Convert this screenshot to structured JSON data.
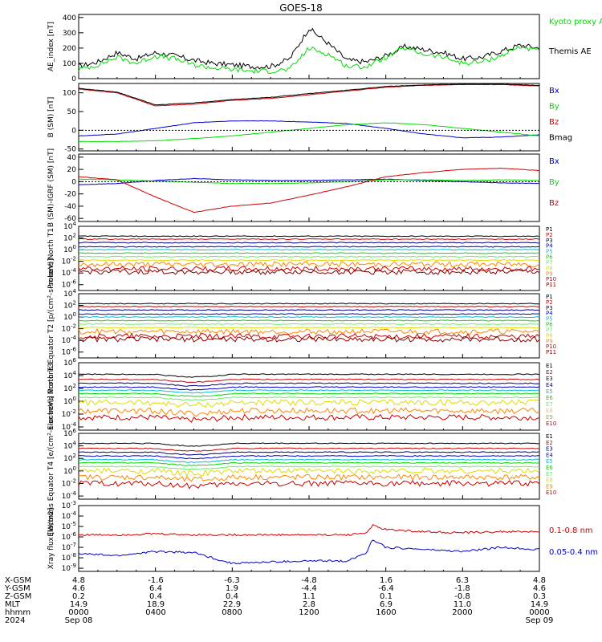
{
  "title": "GOES-18",
  "colors": {
    "black": "#000000",
    "red": "#cc0000",
    "green": "#00dd00",
    "blue": "#0000cc",
    "navy": "#000080",
    "cyan": "#00bbdd",
    "magenta": "#cc00cc",
    "yellow": "#dddd00",
    "orange": "#ff8800",
    "lightgreen": "#66ee66",
    "brown": "#880000"
  },
  "chart_data": [
    {
      "type": "line",
      "title": "GOES-18",
      "ylabel": "AE_index [nT]",
      "yticks": [
        "400",
        "300",
        "200",
        "100",
        "0"
      ],
      "ylim": [
        0,
        420
      ],
      "legend": [
        "Kyoto proxy AE",
        "Themis AE"
      ],
      "series": [
        {
          "name": "Themis AE",
          "color": "#000000",
          "x": [
            0,
            1,
            2,
            3,
            4,
            5,
            6,
            7,
            8,
            9,
            10,
            11,
            12,
            13,
            14,
            15,
            16,
            17,
            18,
            19,
            20,
            21,
            22,
            23,
            24
          ],
          "values": [
            80,
            110,
            170,
            130,
            170,
            150,
            120,
            100,
            90,
            80,
            80,
            130,
            330,
            230,
            120,
            110,
            150,
            210,
            190,
            170,
            130,
            140,
            180,
            220,
            200
          ]
        },
        {
          "name": "Kyoto proxy AE",
          "color": "#00dd00",
          "x": [
            0,
            1,
            2,
            3,
            4,
            5,
            6,
            7,
            8,
            9,
            10,
            11,
            12,
            13,
            14,
            15,
            16,
            17,
            18,
            19,
            20,
            21,
            22,
            23,
            24
          ],
          "values": [
            60,
            90,
            140,
            100,
            150,
            130,
            90,
            70,
            60,
            50,
            50,
            60,
            200,
            160,
            80,
            80,
            140,
            200,
            160,
            140,
            100,
            110,
            150,
            210,
            180
          ]
        }
      ]
    },
    {
      "type": "line",
      "ylabel": "B (SM) [nT]",
      "yticks": [
        "100",
        "50",
        "0",
        "-50"
      ],
      "ylim": [
        -55,
        125
      ],
      "legend": [
        "Bx",
        "By",
        "Bz",
        "Bmag"
      ],
      "series": [
        {
          "name": "Bx",
          "color": "#0000cc",
          "x": [
            0,
            2,
            4,
            6,
            8,
            10,
            12,
            14,
            16,
            18,
            20,
            22,
            24
          ],
          "values": [
            -15,
            -10,
            5,
            20,
            25,
            25,
            22,
            18,
            5,
            -10,
            -20,
            -18,
            -12
          ]
        },
        {
          "name": "By",
          "color": "#00dd00",
          "x": [
            0,
            2,
            4,
            6,
            8,
            10,
            12,
            14,
            16,
            18,
            20,
            22,
            24
          ],
          "values": [
            -30,
            -30,
            -28,
            -22,
            -15,
            -5,
            5,
            15,
            20,
            15,
            5,
            -5,
            -15
          ]
        },
        {
          "name": "Bz",
          "color": "#cc0000",
          "x": [
            0,
            2,
            4,
            6,
            8,
            10,
            12,
            14,
            16,
            18,
            20,
            22,
            24
          ],
          "values": [
            110,
            100,
            65,
            70,
            80,
            85,
            95,
            105,
            115,
            120,
            122,
            122,
            118
          ]
        },
        {
          "name": "Bmag",
          "color": "#000000",
          "x": [
            0,
            2,
            4,
            6,
            8,
            10,
            12,
            14,
            16,
            18,
            20,
            22,
            24
          ],
          "values": [
            112,
            102,
            68,
            73,
            82,
            88,
            98,
            107,
            117,
            121,
            123,
            123,
            120
          ]
        }
      ]
    },
    {
      "type": "line",
      "ylabel": "B (SM)-IGRF (SM) [nT]",
      "yticks": [
        "40",
        "20",
        "0",
        "-20",
        "-40",
        "-60"
      ],
      "ylim": [
        -65,
        45
      ],
      "legend": [
        "Bx",
        "By",
        "Bz"
      ],
      "series": [
        {
          "name": "Bx",
          "color": "#0000cc",
          "x": [
            0,
            2,
            4,
            6,
            8,
            10,
            12,
            14,
            16,
            18,
            20,
            22,
            24
          ],
          "values": [
            -5,
            -3,
            2,
            5,
            3,
            2,
            2,
            3,
            4,
            2,
            0,
            -2,
            -3
          ]
        },
        {
          "name": "By",
          "color": "#00dd00",
          "x": [
            0,
            2,
            4,
            6,
            8,
            10,
            12,
            14,
            16,
            18,
            20,
            22,
            24
          ],
          "values": [
            4,
            3,
            1,
            -1,
            -3,
            -3,
            -2,
            0,
            3,
            3,
            2,
            3,
            2
          ]
        },
        {
          "name": "Bz",
          "color": "#cc0000",
          "x": [
            0,
            2,
            4,
            6,
            8,
            10,
            12,
            14,
            16,
            18,
            20,
            22,
            24
          ],
          "values": [
            8,
            3,
            -25,
            -50,
            -40,
            -35,
            -22,
            -8,
            8,
            15,
            20,
            22,
            18
          ]
        }
      ]
    },
    {
      "type": "line",
      "ylabel": "Protons North T1",
      "yticks": [
        "10^4",
        "10^2",
        "10^0",
        "10^-2",
        "10^-4",
        "10^-6"
      ],
      "ylim_log10": [
        -7,
        4
      ],
      "legend": [
        "P1",
        "P2",
        "P3",
        "P4",
        "P5",
        "P6",
        "P7",
        "P8",
        "P9",
        "P10",
        "P11"
      ],
      "levels_log10": [
        2.3,
        1.8,
        1.2,
        0.5,
        0.0,
        -0.6,
        -1.2,
        -1.8,
        -2.5,
        -3.3,
        -3.8
      ]
    },
    {
      "type": "line",
      "ylabel": "Protons Equator T2 [p/(cm²-s-sr-keV)]",
      "yticks": [
        "10^4",
        "10^2",
        "10^0",
        "10^-2",
        "10^-4",
        "10^-6"
      ],
      "ylim_log10": [
        -7,
        4
      ],
      "legend": [
        "P1",
        "P2",
        "P3",
        "P4",
        "P5",
        "P6",
        "P7",
        "P8",
        "P9",
        "P10",
        "P11"
      ],
      "levels_log10": [
        2.3,
        1.8,
        1.2,
        0.5,
        0.0,
        -0.6,
        -1.2,
        -1.8,
        -2.5,
        -3.3,
        -3.8
      ]
    },
    {
      "type": "line",
      "ylabel": "Electrons North T3",
      "yticks": [
        "10^6",
        "10^4",
        "10^2",
        "10^0",
        "10^-2",
        "10^-4"
      ],
      "ylim_log10": [
        -4.5,
        6
      ],
      "legend": [
        "E1",
        "E2",
        "E3",
        "E4",
        "E5",
        "E6",
        "E7",
        "E8",
        "E9",
        "E10"
      ],
      "levels_log10": [
        4.2,
        3.4,
        2.8,
        2.2,
        1.7,
        1.2,
        0.6,
        -0.2,
        -1.5,
        -2.5
      ]
    },
    {
      "type": "line",
      "ylabel": "Electrons Equator T4 [e/(cm²-s-sr-keV)]",
      "yticks": [
        "10^6",
        "10^4",
        "10^2",
        "10^0",
        "10^-2",
        "10^-4"
      ],
      "ylim_log10": [
        -4.5,
        6
      ],
      "legend": [
        "E1",
        "E2",
        "E3",
        "E4",
        "E5",
        "E6",
        "E7",
        "E8",
        "E9",
        "E10"
      ],
      "levels_log10": [
        4.4,
        3.6,
        3.0,
        2.4,
        1.8,
        1.3,
        0.7,
        0.0,
        -1.0,
        -2.0
      ]
    },
    {
      "type": "line",
      "ylabel": "Xray flux [W/m2]",
      "yticks": [
        "10^-3",
        "10^-4",
        "10^-5",
        "10^-6",
        "10^-7",
        "10^-8",
        "10^-9"
      ],
      "ylim_log10": [
        -9.3,
        -3
      ],
      "legend": [
        "0.1-0.8 nm",
        "0.05-0.4 nm"
      ],
      "series": [
        {
          "name": "0.1-0.8 nm",
          "color": "#cc0000",
          "x": [
            0,
            2,
            4,
            6,
            7.9,
            8.6,
            10,
            12,
            14,
            15,
            15.3,
            16,
            18,
            20,
            22,
            24
          ],
          "values": [
            -5.8,
            -5.8,
            -5.7,
            -5.8,
            -5.8,
            -5.8,
            -5.8,
            -5.8,
            -5.8,
            -5.6,
            -4.9,
            -5.3,
            -5.5,
            -5.6,
            -5.5,
            -5.5
          ]
        },
        {
          "name": "0.05-0.4 nm",
          "color": "#0000cc",
          "x": [
            0,
            2,
            4,
            6,
            7.9,
            8.6,
            10,
            12,
            14,
            15,
            15.3,
            16,
            18,
            20,
            22,
            24
          ],
          "values": [
            -7.6,
            -7.8,
            -7.4,
            -7.5,
            -8.5,
            -8.5,
            -8.4,
            -8.3,
            -8.3,
            -7.5,
            -6.2,
            -7.0,
            -7.2,
            -7.4,
            -7.0,
            -7.2
          ]
        }
      ]
    }
  ],
  "x_axis": {
    "rows": [
      {
        "label": "X-GSM",
        "values": [
          "4.8",
          "-1.6",
          "-6.3",
          "-4.8",
          "1.6",
          "6.3",
          "4.8"
        ]
      },
      {
        "label": "Y-GSM",
        "values": [
          "4.6",
          "6.4",
          "1.9",
          "-4.4",
          "-6.4",
          "-1.8",
          "4.6"
        ]
      },
      {
        "label": "Z-GSM",
        "values": [
          "0.2",
          "0.4",
          "0.4",
          "1.1",
          "0.1",
          "-0.8",
          "0.3"
        ]
      },
      {
        "label": "MLT",
        "values": [
          "14.9",
          "18.9",
          "22.9",
          "2.8",
          "6.9",
          "11.0",
          "14.9"
        ]
      },
      {
        "label": "hhmm",
        "values": [
          "0000",
          "0400",
          "0800",
          "1200",
          "1600",
          "2000",
          "0000"
        ]
      },
      {
        "label": "2024",
        "values": [
          "Sep 08",
          "",
          "",
          "",
          "",
          "",
          "Sep 09"
        ]
      }
    ]
  }
}
